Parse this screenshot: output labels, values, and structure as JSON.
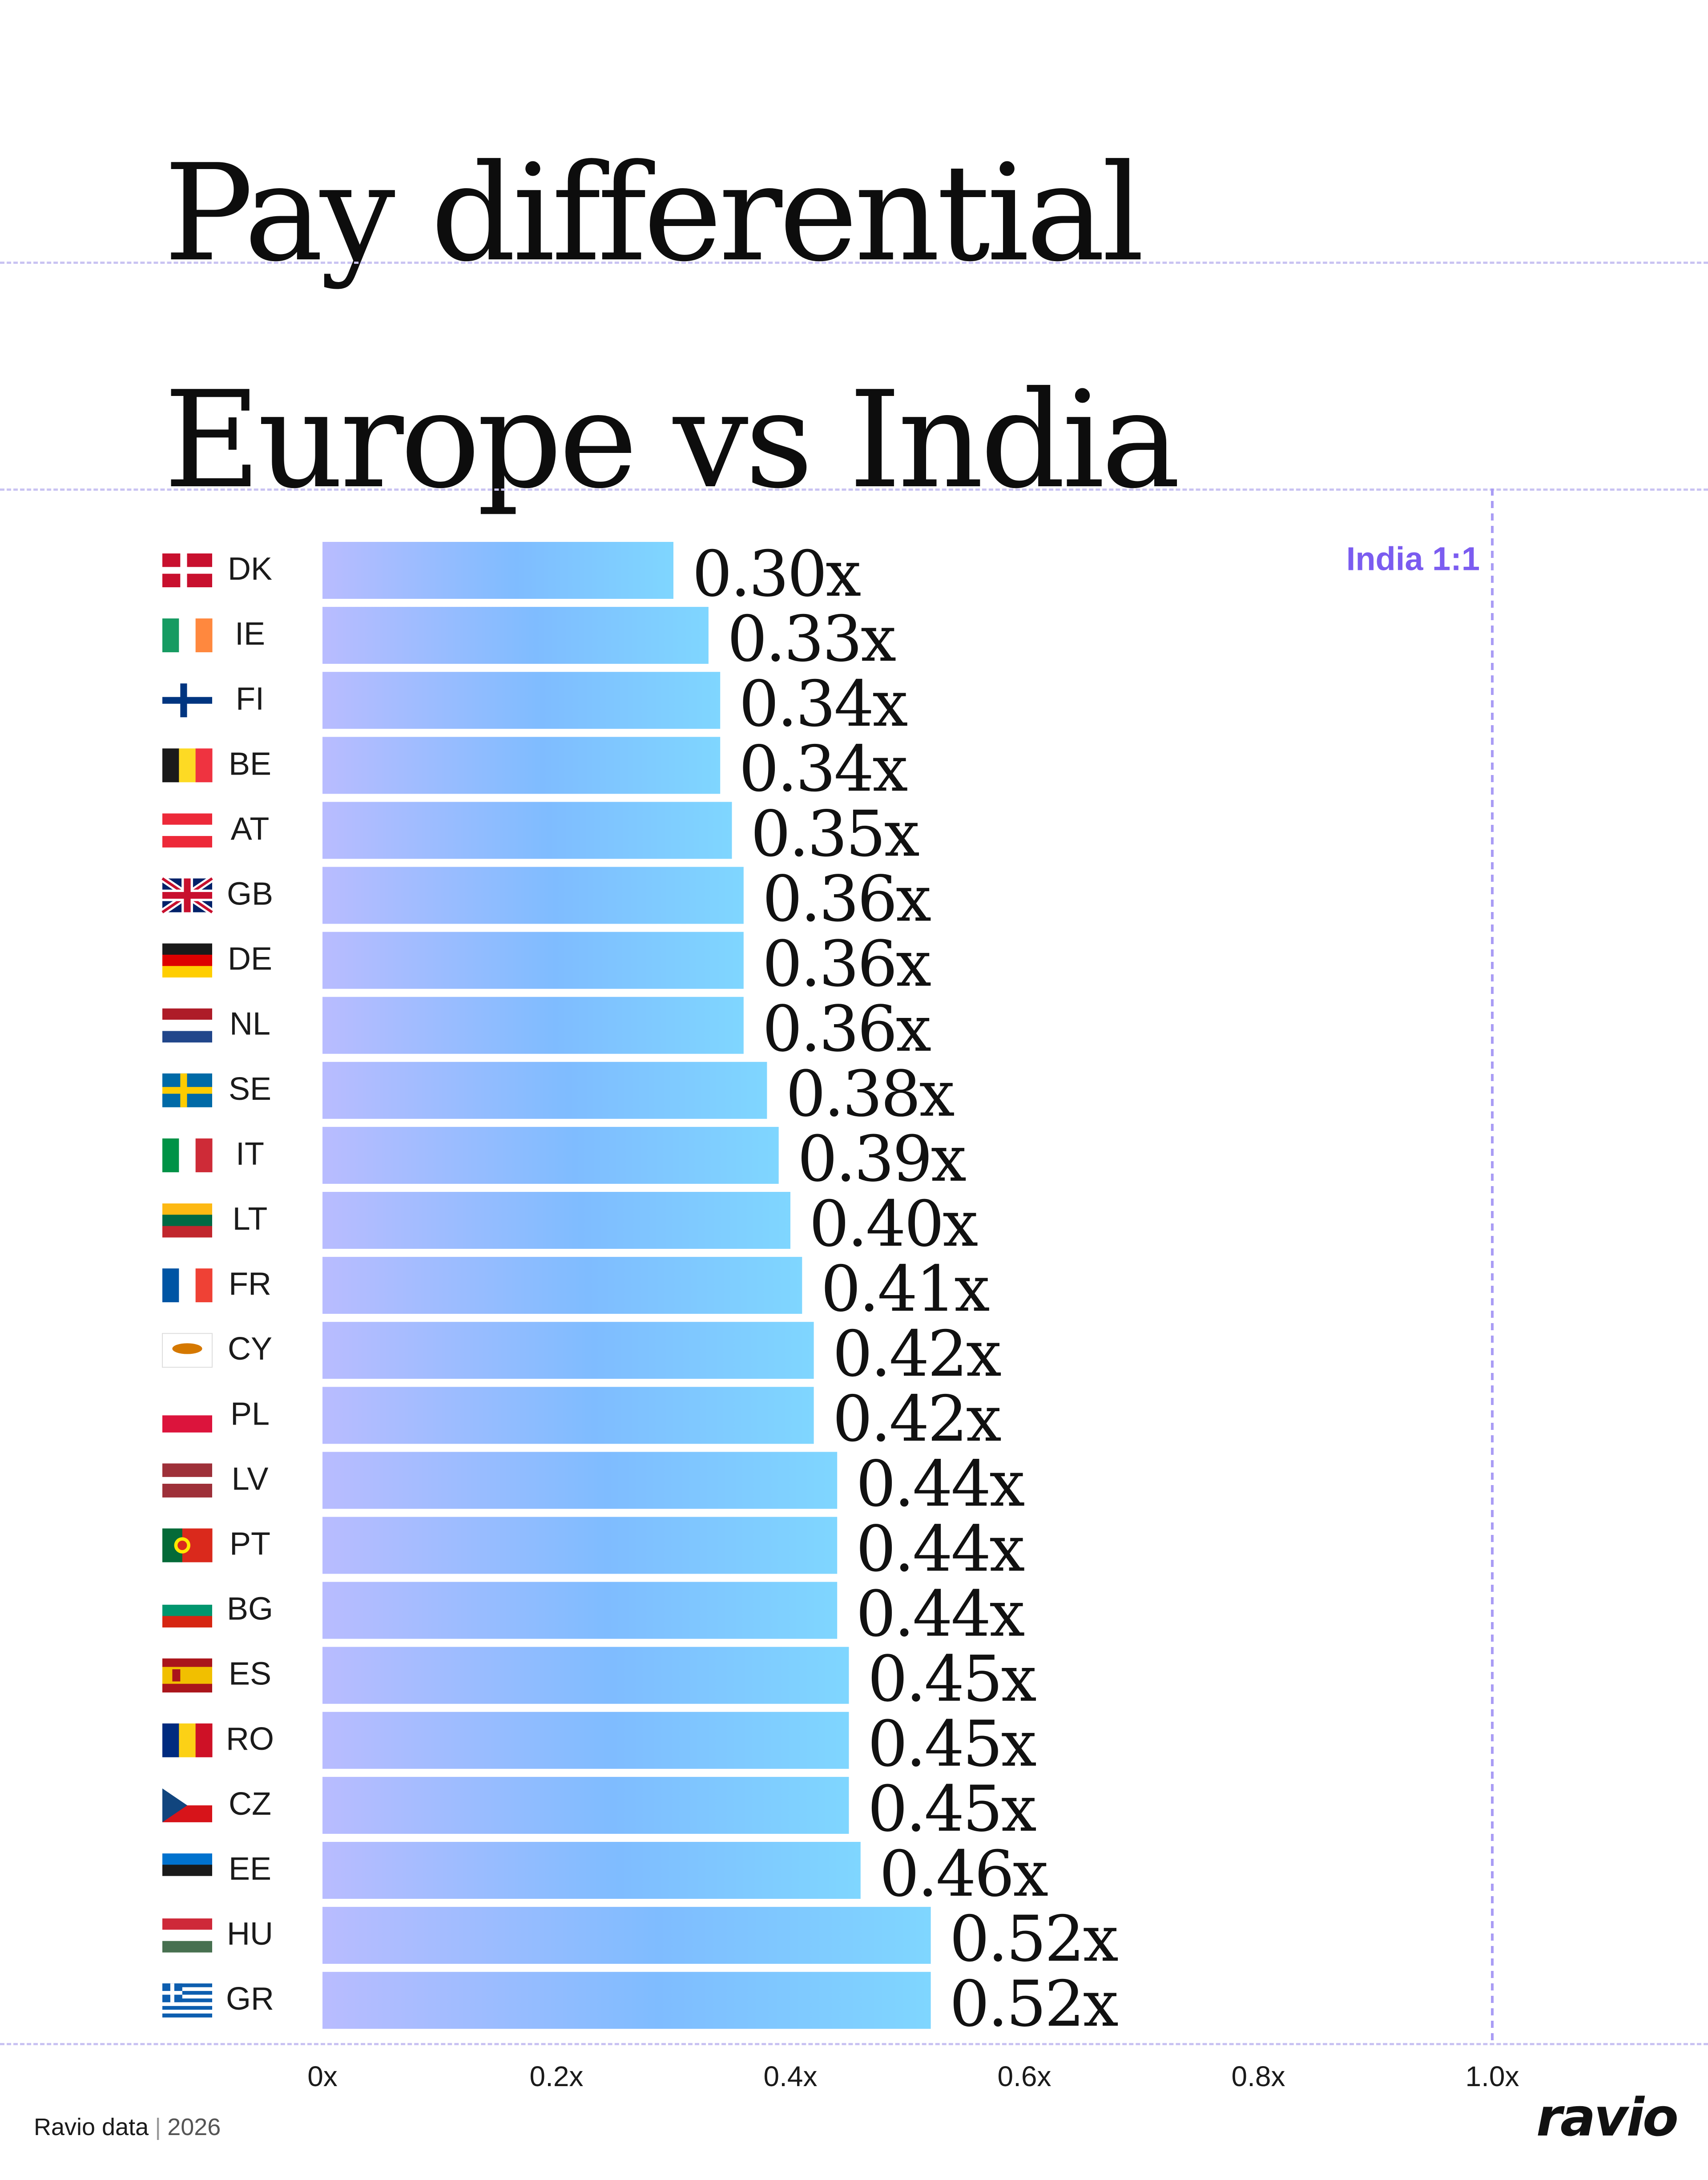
{
  "title_lines": [
    "Pay differential",
    "Europe vs India"
  ],
  "footer": {
    "source": "Ravio data",
    "separator": "|",
    "year": "2026",
    "logo": "ravio"
  },
  "colors": {
    "bar_gradient_start": "#b9bcff",
    "bar_gradient_mid": "#7fbcff",
    "bar_gradient_end": "#7fd6ff",
    "reference_line": "#a99cf5",
    "reference_label": "#7b5cf0",
    "guide_lines": "#c9c3f2"
  },
  "chart_data": {
    "type": "bar",
    "orientation": "horizontal",
    "title": "Pay differential Europe vs India",
    "categories": [
      "DK",
      "IE",
      "FI",
      "BE",
      "AT",
      "GB",
      "DE",
      "NL",
      "SE",
      "IT",
      "LT",
      "FR",
      "CY",
      "PL",
      "LV",
      "PT",
      "BG",
      "ES",
      "RO",
      "CZ",
      "EE",
      "HU",
      "GR"
    ],
    "flags": [
      "flag-dk-icon",
      "flag-ie-icon",
      "flag-fi-icon",
      "flag-be-icon",
      "flag-at-icon",
      "flag-gb-icon",
      "flag-de-icon",
      "flag-nl-icon",
      "flag-se-icon",
      "flag-it-icon",
      "flag-lt-icon",
      "flag-fr-icon",
      "flag-cy-icon",
      "flag-pl-icon",
      "flag-lv-icon",
      "flag-pt-icon",
      "flag-bg-icon",
      "flag-es-icon",
      "flag-ro-icon",
      "flag-cz-icon",
      "flag-ee-icon",
      "flag-hu-icon",
      "flag-gr-icon"
    ],
    "values": [
      0.3,
      0.33,
      0.34,
      0.34,
      0.35,
      0.36,
      0.36,
      0.36,
      0.38,
      0.39,
      0.4,
      0.41,
      0.42,
      0.42,
      0.44,
      0.44,
      0.44,
      0.45,
      0.45,
      0.45,
      0.46,
      0.52,
      0.52
    ],
    "value_labels": [
      "0.30x",
      "0.33x",
      "0.34x",
      "0.34x",
      "0.35x",
      "0.36x",
      "0.36x",
      "0.36x",
      "0.38x",
      "0.39x",
      "0.40x",
      "0.41x",
      "0.42x",
      "0.42x",
      "0.44x",
      "0.44x",
      "0.44x",
      "0.45x",
      "0.45x",
      "0.45x",
      "0.46x",
      "0.52x",
      "0.52x"
    ],
    "x_ticks": [
      0,
      0.2,
      0.4,
      0.6,
      0.8,
      1.0
    ],
    "x_tick_labels": [
      "0x",
      "0.2x",
      "0.4x",
      "0.6x",
      "0.8x",
      "1.0x"
    ],
    "xlim": [
      0,
      1.0
    ],
    "reference": {
      "value": 1.0,
      "label": "India 1:1"
    },
    "grid": false,
    "legend": "none"
  }
}
